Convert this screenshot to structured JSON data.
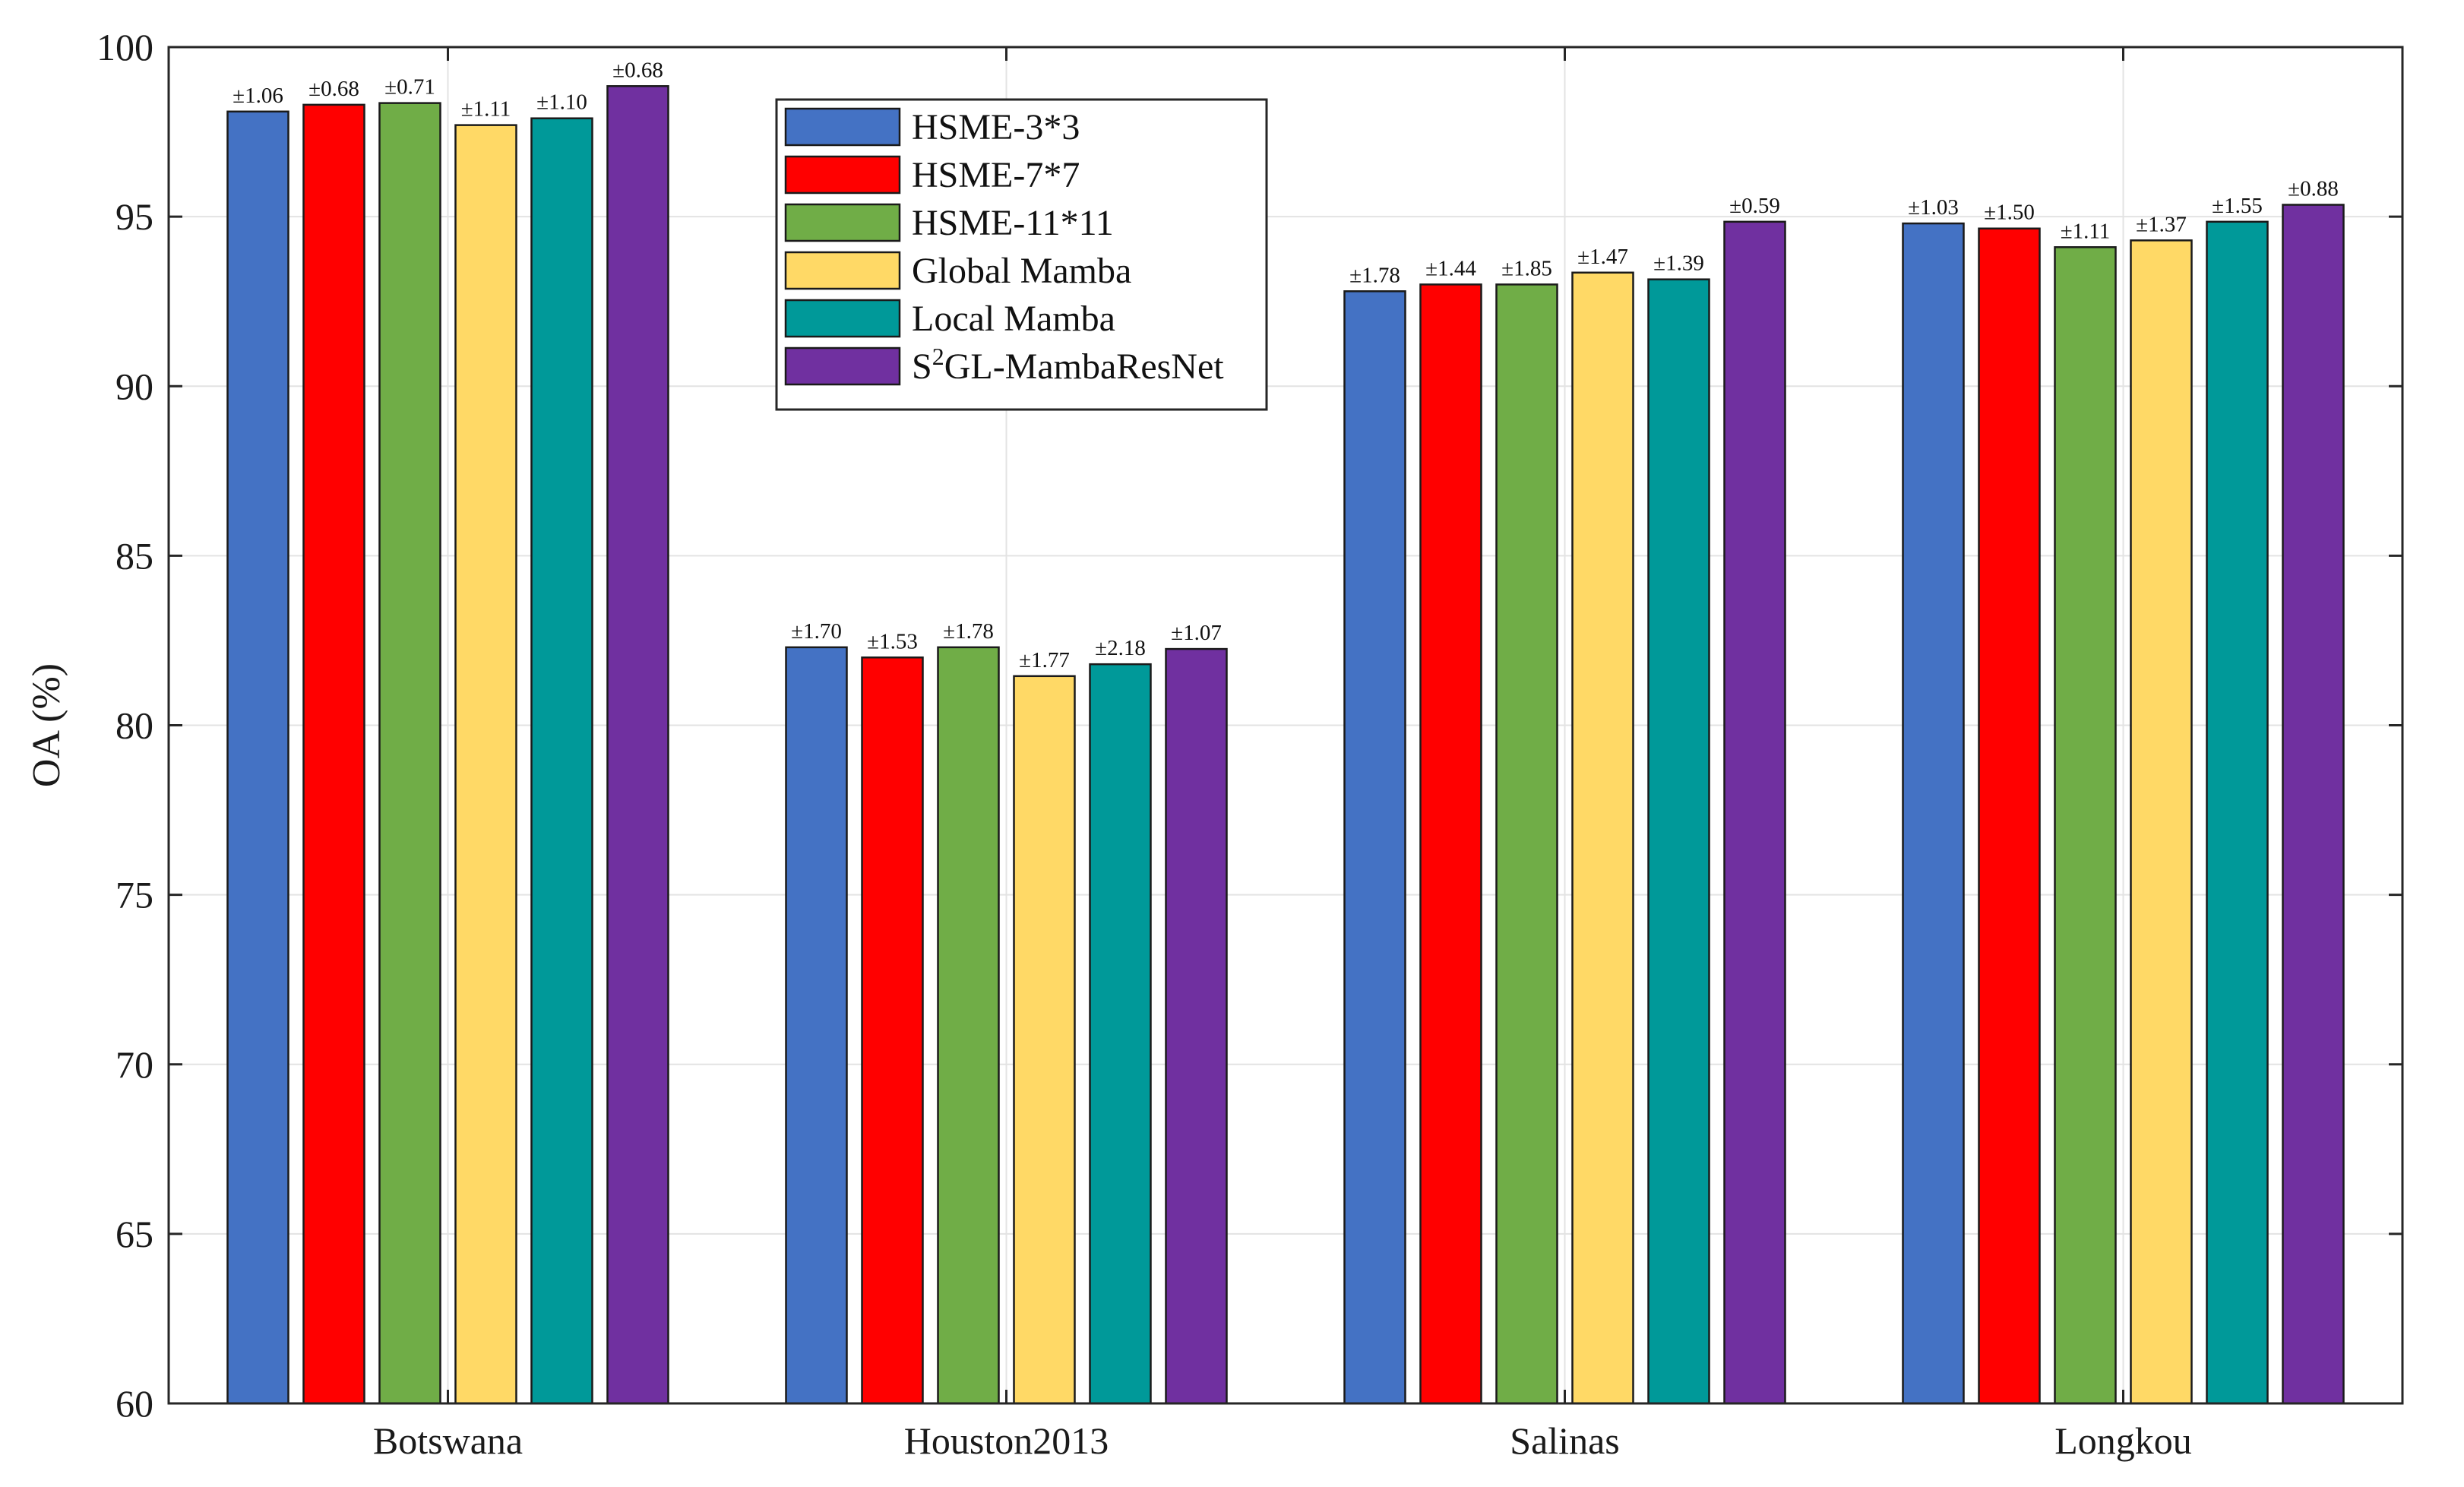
{
  "chart_data": {
    "type": "bar",
    "title": "",
    "xlabel": "",
    "ylabel": "OA (%)",
    "ylim": [
      60,
      100
    ],
    "yticks": [
      "60",
      "65",
      "70",
      "75",
      "80",
      "85",
      "90",
      "95",
      "100"
    ],
    "grid": true,
    "legend_position": "top-left",
    "categories": [
      "Botswana",
      "Houston2013",
      "Salinas",
      "Longkou"
    ],
    "series": [
      {
        "name": "HSME-3*3",
        "color": "#4472C4",
        "values": [
          98.1,
          82.3,
          92.8,
          94.8
        ],
        "errors": [
          "±1.06",
          "±1.70",
          "±1.78",
          "±1.03"
        ]
      },
      {
        "name": "HSME-7*7",
        "color": "#FF0000",
        "values": [
          98.3,
          82.0,
          93.0,
          94.65
        ],
        "errors": [
          "±0.68",
          "±1.53",
          "±1.44",
          "±1.50"
        ]
      },
      {
        "name": "HSME-11*11",
        "color": "#70AD47",
        "values": [
          98.35,
          82.3,
          93.0,
          94.1
        ],
        "errors": [
          "±0.71",
          "±1.78",
          "±1.85",
          "±1.11"
        ]
      },
      {
        "name": "Global Mamba",
        "color": "#FFD966",
        "values": [
          97.7,
          81.45,
          93.35,
          94.3
        ],
        "errors": [
          "±1.11",
          "±1.77",
          "±1.47",
          "±1.37"
        ]
      },
      {
        "name": "Local Mamba",
        "color": "#009999",
        "values": [
          97.9,
          81.8,
          93.15,
          94.85
        ],
        "errors": [
          "±1.10",
          "±2.18",
          "±1.39",
          "±1.55"
        ]
      },
      {
        "name": "S2GL-MambaResNet",
        "legend_base": "S",
        "legend_sup": "2",
        "legend_rest": "GL-MambaResNet",
        "color": "#7030A0",
        "values": [
          98.85,
          82.25,
          94.85,
          95.35
        ],
        "errors": [
          "±0.68",
          "±1.07",
          "±0.59",
          "±0.88"
        ]
      }
    ]
  }
}
